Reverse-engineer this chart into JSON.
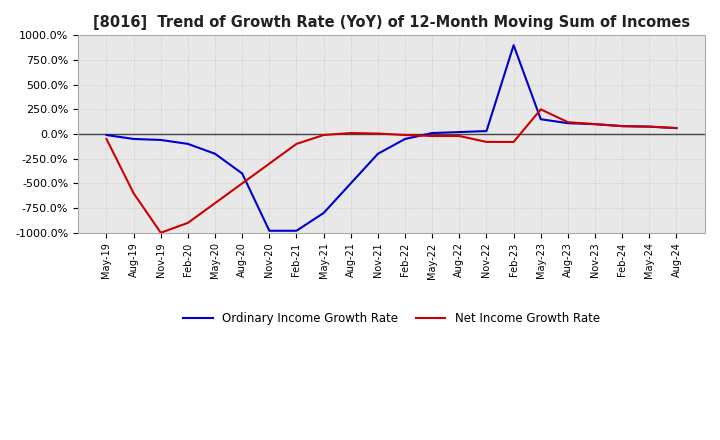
{
  "title": "[8016]  Trend of Growth Rate (YoY) of 12-Month Moving Sum of Incomes",
  "ylim": [
    -1000,
    1000
  ],
  "yticks": [
    -1000,
    -750,
    -500,
    -250,
    0,
    250,
    500,
    750,
    1000
  ],
  "ytick_labels": [
    "-1000.0%",
    "-750.0%",
    "-500.0%",
    "-250.0%",
    "0.0%",
    "250.0%",
    "500.0%",
    "750.0%",
    "1000.0%"
  ],
  "bg_color": "#ffffff",
  "plot_bg_color": "#e8e8e8",
  "grid_color": "#bbbbbb",
  "ordinary_color": "#0000cc",
  "net_color": "#cc0000",
  "legend_ordinary": "Ordinary Income Growth Rate",
  "legend_net": "Net Income Growth Rate",
  "x_dates": [
    "May-19",
    "Aug-19",
    "Nov-19",
    "Feb-20",
    "May-20",
    "Aug-20",
    "Nov-20",
    "Feb-21",
    "May-21",
    "Aug-21",
    "Nov-21",
    "Feb-22",
    "May-22",
    "Aug-22",
    "Nov-22",
    "Feb-23",
    "May-23",
    "Aug-23",
    "Nov-23",
    "Feb-24",
    "May-24",
    "Aug-24"
  ],
  "ordinary_y": [
    -10,
    -50,
    -60,
    -100,
    -200,
    -400,
    -980,
    -980,
    -800,
    -500,
    -200,
    -50,
    10,
    20,
    30,
    900,
    150,
    110,
    100,
    80,
    75,
    60
  ],
  "net_y": [
    -50,
    -600,
    -1000,
    -900,
    -700,
    -500,
    -300,
    -100,
    -10,
    10,
    5,
    -10,
    -20,
    -20,
    -80,
    -80,
    250,
    120,
    100,
    80,
    75,
    60
  ]
}
